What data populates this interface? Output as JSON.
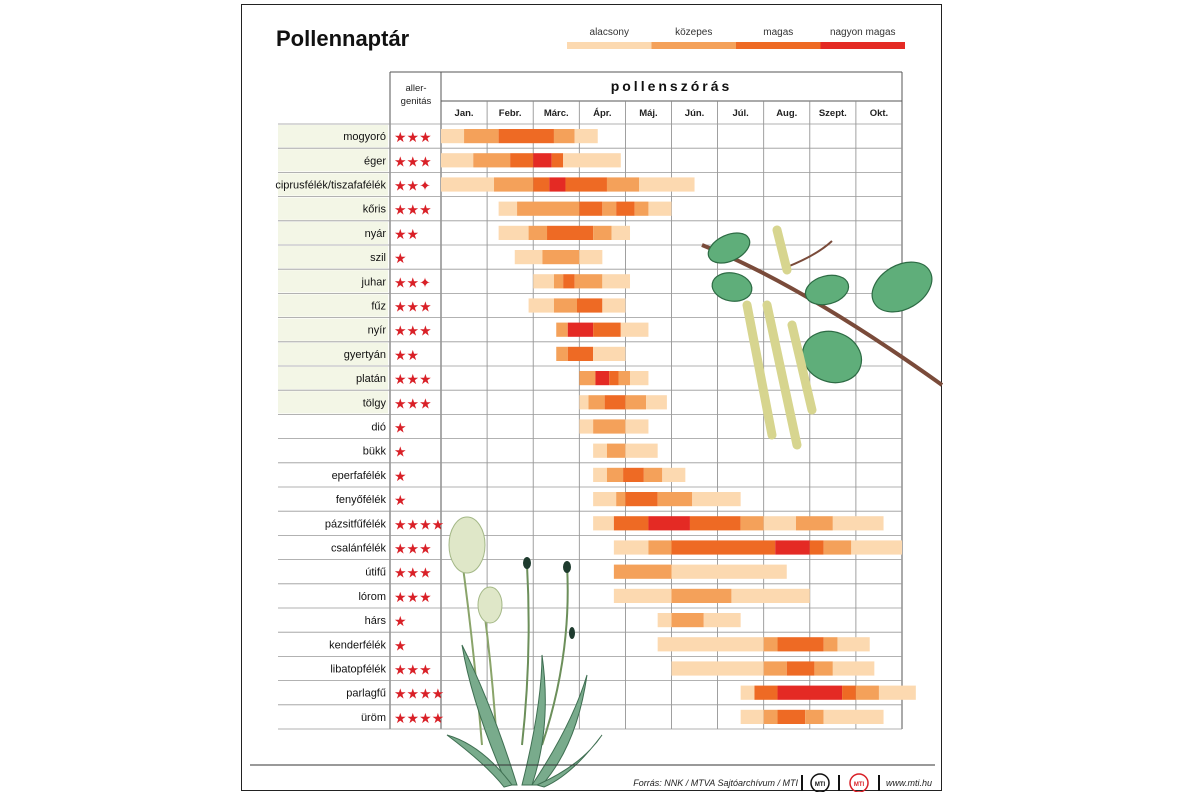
{
  "chart_data": {
    "type": "table",
    "title": "Pollennaptár",
    "allergen_header": [
      "aller-",
      "genitás"
    ],
    "period_header": "pollenszórás",
    "months": [
      "Jan.",
      "Febr.",
      "Márc.",
      "Ápr.",
      "Máj.",
      "Jún.",
      "Júl.",
      "Aug.",
      "Szept.",
      "Okt."
    ],
    "legend": [
      {
        "label": "alacsony",
        "color": "#fcd9b0"
      },
      {
        "label": "közepes",
        "color": "#f4a15a"
      },
      {
        "label": "magas",
        "color": "#ee6a24"
      },
      {
        "label": "nagyon magas",
        "color": "#e42a24"
      }
    ],
    "unit_note": "segment positions in months (0 = start of January, 10 = end of October); level 1=alacsony, 2=közepes, 3=magas, 4=nagyon magas",
    "plants": [
      {
        "name": "mogyoró",
        "stars": "***",
        "segments": [
          [
            0,
            0.5,
            1
          ],
          [
            0.5,
            1.25,
            2
          ],
          [
            1.25,
            2.45,
            3
          ],
          [
            2.45,
            2.9,
            2
          ],
          [
            2.9,
            3.4,
            1
          ]
        ]
      },
      {
        "name": "éger",
        "stars": "***",
        "segments": [
          [
            0,
            0.7,
            1
          ],
          [
            0.7,
            1.5,
            2
          ],
          [
            1.5,
            2.0,
            3
          ],
          [
            2.0,
            2.4,
            4
          ],
          [
            2.4,
            2.65,
            3
          ],
          [
            2.65,
            3.9,
            1
          ]
        ]
      },
      {
        "name": "ciprusfélék/tiszafafélék",
        "stars": "**·",
        "segments": [
          [
            0,
            1.15,
            1
          ],
          [
            1.15,
            2.0,
            2
          ],
          [
            2.0,
            2.35,
            3
          ],
          [
            2.35,
            2.7,
            4
          ],
          [
            2.7,
            3.6,
            3
          ],
          [
            3.6,
            4.3,
            2
          ],
          [
            4.3,
            5.5,
            1
          ]
        ]
      },
      {
        "name": "kőris",
        "stars": "***",
        "segments": [
          [
            1.25,
            1.65,
            1
          ],
          [
            1.65,
            3.0,
            2
          ],
          [
            3.0,
            3.5,
            3
          ],
          [
            3.5,
            3.8,
            2
          ],
          [
            3.8,
            4.2,
            3
          ],
          [
            4.2,
            4.5,
            2
          ],
          [
            4.5,
            5.0,
            1
          ]
        ]
      },
      {
        "name": "nyár",
        "stars": "**",
        "segments": [
          [
            1.25,
            1.9,
            1
          ],
          [
            1.9,
            2.3,
            2
          ],
          [
            2.3,
            3.3,
            3
          ],
          [
            3.3,
            3.7,
            2
          ],
          [
            3.7,
            4.1,
            1
          ]
        ]
      },
      {
        "name": "szil",
        "stars": "*",
        "segments": [
          [
            1.6,
            2.2,
            1
          ],
          [
            2.2,
            3.0,
            2
          ],
          [
            3.0,
            3.5,
            1
          ]
        ]
      },
      {
        "name": "juhar",
        "stars": "**·",
        "segments": [
          [
            2.0,
            2.45,
            1
          ],
          [
            2.45,
            2.65,
            2
          ],
          [
            2.65,
            2.9,
            3
          ],
          [
            2.9,
            3.5,
            2
          ],
          [
            3.5,
            4.1,
            1
          ]
        ]
      },
      {
        "name": "fűz",
        "stars": "***",
        "segments": [
          [
            1.9,
            2.45,
            1
          ],
          [
            2.45,
            2.95,
            2
          ],
          [
            2.95,
            3.5,
            3
          ],
          [
            3.5,
            4.0,
            1
          ]
        ]
      },
      {
        "name": "nyír",
        "stars": "***",
        "segments": [
          [
            2.5,
            2.75,
            2
          ],
          [
            2.75,
            3.3,
            4
          ],
          [
            3.3,
            3.9,
            3
          ],
          [
            3.9,
            4.5,
            1
          ]
        ]
      },
      {
        "name": "gyertyán",
        "stars": "**",
        "segments": [
          [
            2.5,
            2.75,
            2
          ],
          [
            2.75,
            3.3,
            3
          ],
          [
            3.3,
            4.0,
            1
          ]
        ]
      },
      {
        "name": "platán",
        "stars": "***",
        "segments": [
          [
            3.0,
            3.35,
            2
          ],
          [
            3.35,
            3.65,
            4
          ],
          [
            3.65,
            3.85,
            3
          ],
          [
            3.85,
            4.1,
            2
          ],
          [
            4.1,
            4.5,
            1
          ]
        ]
      },
      {
        "name": "tölgy",
        "stars": "***",
        "segments": [
          [
            3.0,
            3.2,
            1
          ],
          [
            3.2,
            3.55,
            2
          ],
          [
            3.55,
            4.0,
            3
          ],
          [
            4.0,
            4.45,
            2
          ],
          [
            4.45,
            4.9,
            1
          ]
        ]
      },
      {
        "name": "dió",
        "stars": "*",
        "segments": [
          [
            3.0,
            3.3,
            1
          ],
          [
            3.3,
            4.0,
            2
          ],
          [
            4.0,
            4.5,
            1
          ]
        ]
      },
      {
        "name": "bükk",
        "stars": "*",
        "segments": [
          [
            3.3,
            3.6,
            1
          ],
          [
            3.6,
            4.0,
            2
          ],
          [
            4.0,
            4.7,
            1
          ]
        ]
      },
      {
        "name": "eperfafélék",
        "stars": "*",
        "segments": [
          [
            3.3,
            3.6,
            1
          ],
          [
            3.6,
            3.95,
            2
          ],
          [
            3.95,
            4.4,
            3
          ],
          [
            4.4,
            4.8,
            2
          ],
          [
            4.8,
            5.3,
            1
          ]
        ]
      },
      {
        "name": "fenyőfélék",
        "stars": "*",
        "segments": [
          [
            3.3,
            3.8,
            1
          ],
          [
            3.8,
            4.0,
            2
          ],
          [
            4.0,
            4.7,
            3
          ],
          [
            4.7,
            5.45,
            2
          ],
          [
            5.45,
            6.5,
            1
          ]
        ]
      },
      {
        "name": "pázsitfűfélék",
        "stars": "****",
        "segments": [
          [
            3.3,
            3.75,
            1
          ],
          [
            3.75,
            4.5,
            3
          ],
          [
            4.5,
            5.4,
            4
          ],
          [
            5.4,
            6.5,
            3
          ],
          [
            6.5,
            7.0,
            2
          ],
          [
            7.0,
            7.7,
            1
          ],
          [
            7.7,
            8.5,
            2
          ],
          [
            8.5,
            9.6,
            1
          ]
        ]
      },
      {
        "name": "csalánfélék",
        "stars": "***",
        "segments": [
          [
            3.75,
            4.5,
            1
          ],
          [
            4.5,
            5.0,
            2
          ],
          [
            5.0,
            7.25,
            3
          ],
          [
            7.25,
            8.0,
            4
          ],
          [
            8.0,
            8.3,
            3
          ],
          [
            8.3,
            8.9,
            2
          ],
          [
            8.9,
            10.0,
            1
          ]
        ]
      },
      {
        "name": "útifű",
        "stars": "***",
        "segments": [
          [
            3.75,
            5.0,
            2
          ],
          [
            5.0,
            7.5,
            1
          ]
        ]
      },
      {
        "name": "lórom",
        "stars": "***",
        "segments": [
          [
            3.75,
            5.0,
            1
          ],
          [
            5.0,
            6.3,
            2
          ],
          [
            6.3,
            8.0,
            1
          ]
        ]
      },
      {
        "name": "hárs",
        "stars": "*",
        "segments": [
          [
            4.7,
            5.0,
            1
          ],
          [
            5.0,
            5.7,
            2
          ],
          [
            5.7,
            6.5,
            1
          ]
        ]
      },
      {
        "name": "kenderfélék",
        "stars": "*",
        "segments": [
          [
            4.7,
            7.0,
            1
          ],
          [
            7.0,
            7.3,
            2
          ],
          [
            7.3,
            8.3,
            3
          ],
          [
            8.3,
            8.6,
            2
          ],
          [
            8.6,
            9.3,
            1
          ]
        ]
      },
      {
        "name": "libatopfélék",
        "stars": "***",
        "segments": [
          [
            5.0,
            7.0,
            1
          ],
          [
            7.0,
            7.5,
            2
          ],
          [
            7.5,
            8.1,
            3
          ],
          [
            8.1,
            8.5,
            2
          ],
          [
            8.5,
            9.4,
            1
          ]
        ]
      },
      {
        "name": "parlagfű",
        "stars": "****",
        "segments": [
          [
            6.5,
            6.8,
            1
          ],
          [
            6.8,
            7.3,
            3
          ],
          [
            7.3,
            8.7,
            4
          ],
          [
            8.7,
            9.0,
            3
          ],
          [
            9.0,
            9.5,
            2
          ],
          [
            9.5,
            10.3,
            1
          ]
        ]
      },
      {
        "name": "üröm",
        "stars": "****",
        "segments": [
          [
            6.5,
            7.0,
            1
          ],
          [
            7.0,
            7.3,
            2
          ],
          [
            7.3,
            7.9,
            3
          ],
          [
            7.9,
            8.3,
            2
          ],
          [
            8.3,
            9.6,
            1
          ]
        ]
      }
    ]
  },
  "footer": {
    "source": "Forrás: NNK / MTVA Sajtóarchívum / MTI",
    "logo1": "MTI",
    "logo2": "MTI",
    "url": "www.mti.hu"
  }
}
